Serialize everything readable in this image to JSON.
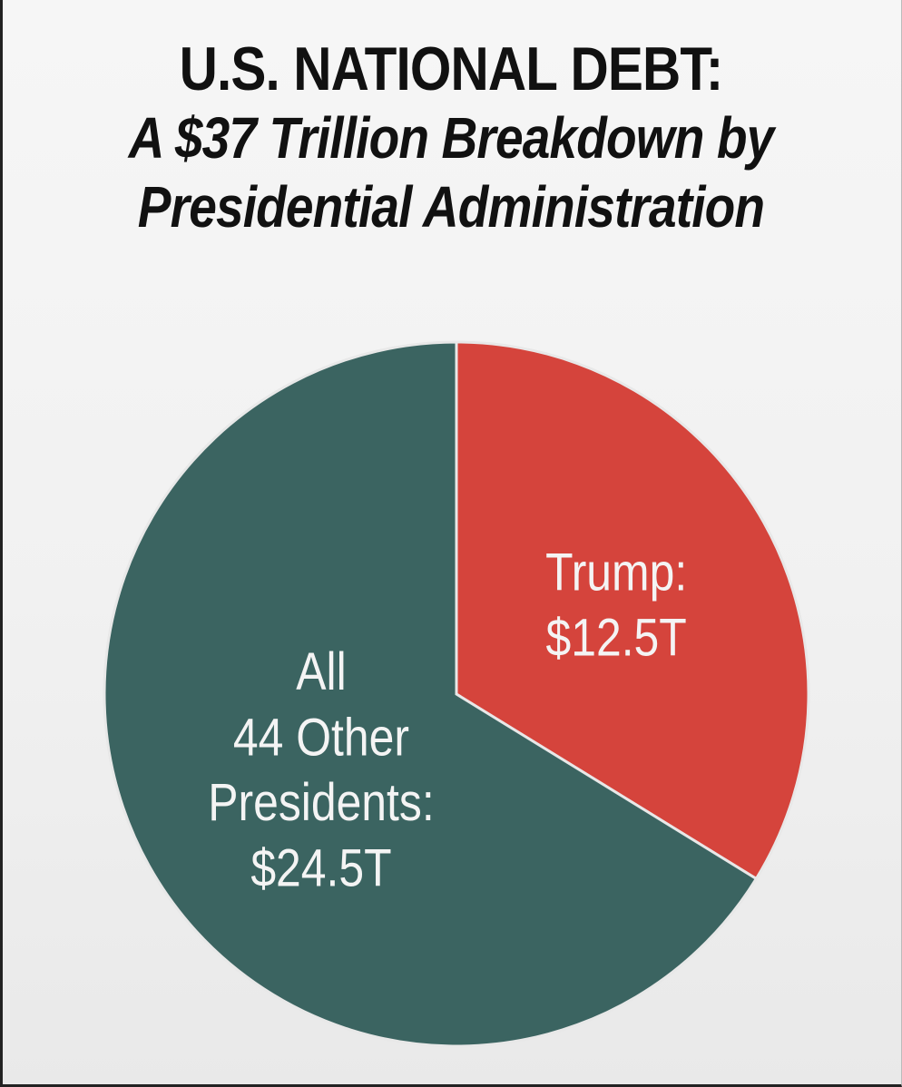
{
  "header": {
    "title": "U.S. NATIONAL DEBT:",
    "subtitle_line1": "A $37 Trillion Breakdown by",
    "subtitle_line2": "Presidential Administration"
  },
  "chart_data": {
    "type": "pie",
    "title": "U.S. NATIONAL DEBT: A $37 Trillion Breakdown by Presidential Administration",
    "unit": "trillion USD",
    "slices": [
      {
        "name": "Trump",
        "value": 12.5,
        "color": "#d5443c",
        "label_lines": [
          "Trump:",
          "$12.5T"
        ]
      },
      {
        "name": "All 44 Other Presidents",
        "value": 24.5,
        "color": "#3b6461",
        "label_lines": [
          "All",
          "44 Other",
          "Presidents:",
          "$24.5T"
        ]
      }
    ],
    "total": 37
  }
}
